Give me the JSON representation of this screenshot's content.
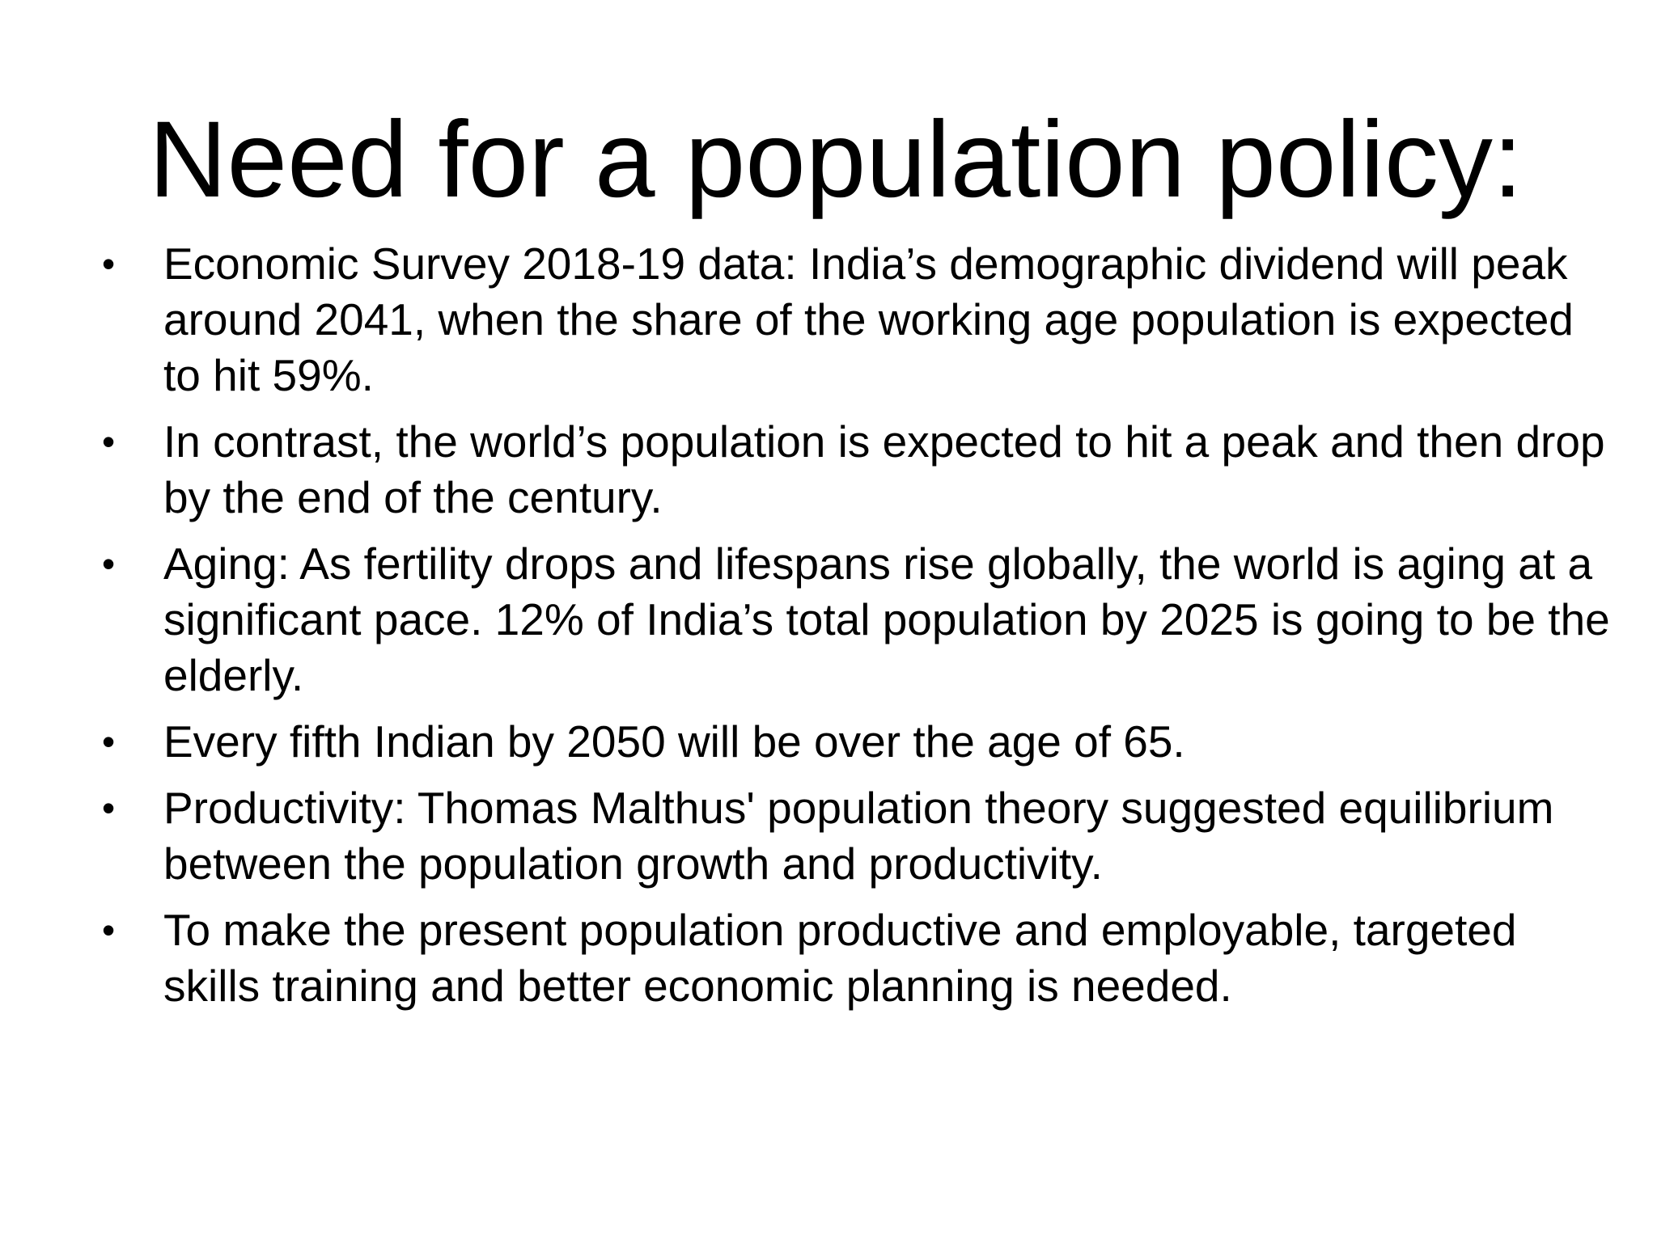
{
  "slide": {
    "title": "Need for a population policy:",
    "bullet_symbol": "•",
    "bullets": [
      "Economic Survey 2018-19  data: India’s demographic dividend will peak around 2041, when the share of the working age population is expected to hit 59%.",
      "In contrast, the world’s population is expected to hit a peak and then drop by the end of the century.",
      "Aging: As fertility drops and lifespans rise globally, the world is aging at a significant pace. 12% of India’s total population by 2025 is going to be the elderly.",
      "Every fifth Indian by 2050 will be over the age of 65.",
      "Productivity: Thomas Malthus' population theory suggested equilibrium between the population growth and productivity.",
      "To make the present population productive and employable, targeted skills training and better economic planning is needed."
    ]
  }
}
